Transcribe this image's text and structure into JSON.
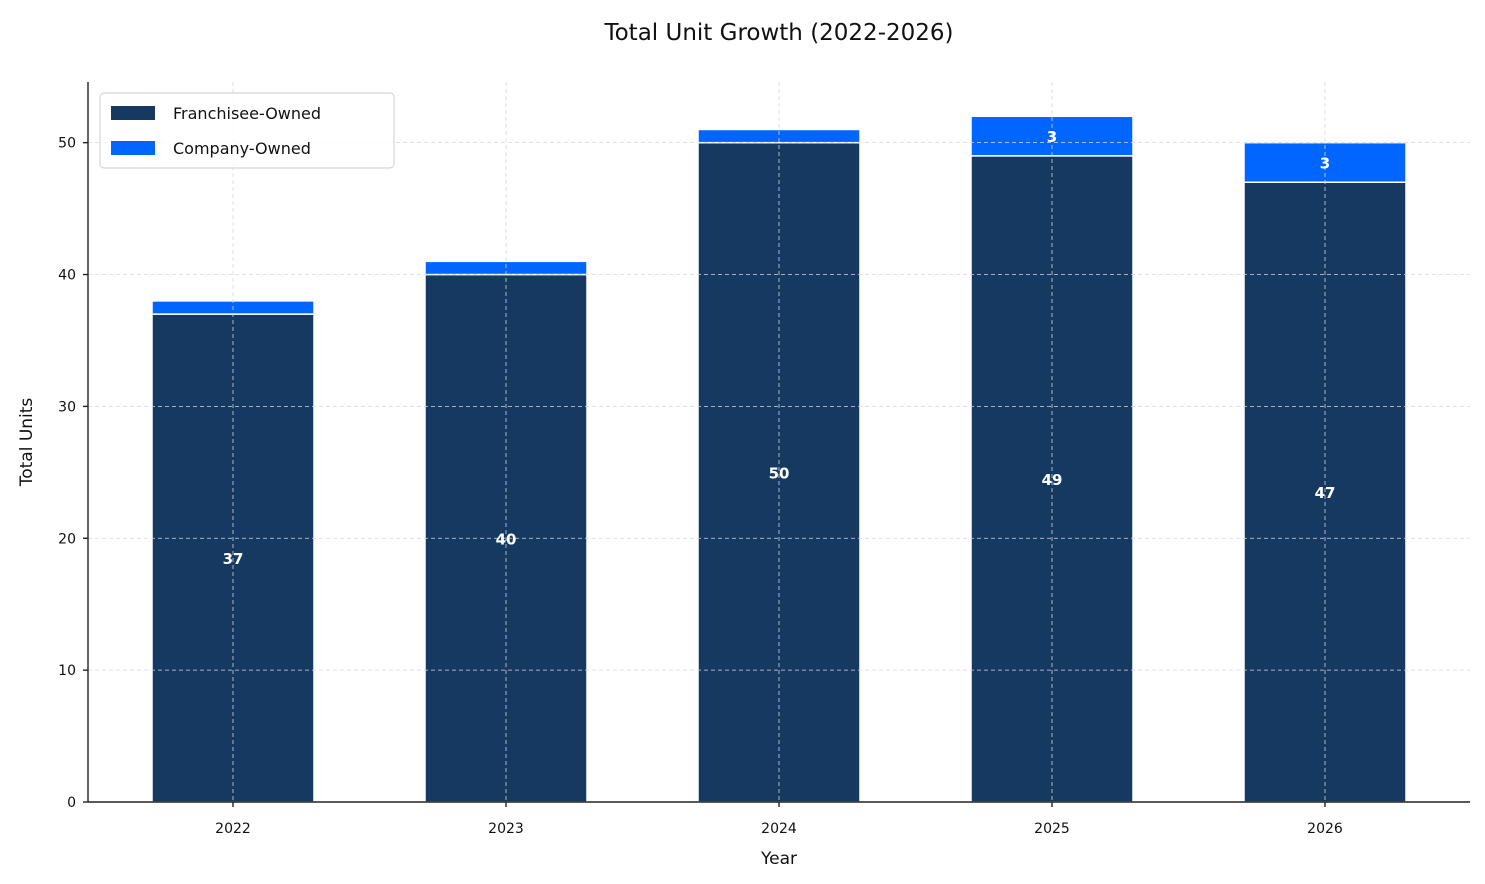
{
  "chart_data": {
    "type": "bar",
    "stacked": true,
    "title": "Total Unit Growth (2022-2026)",
    "xlabel": "Year",
    "ylabel": "Total Units",
    "categories": [
      "2022",
      "2023",
      "2024",
      "2025",
      "2026"
    ],
    "series": [
      {
        "name": "Franchisee-Owned",
        "color": "#153961",
        "values": [
          37,
          40,
          50,
          49,
          47
        ],
        "data_labels": [
          "37",
          "40",
          "50",
          "49",
          "47"
        ]
      },
      {
        "name": "Company-Owned",
        "color": "#0066ff",
        "values": [
          1,
          1,
          1,
          3,
          3
        ],
        "data_labels": [
          "",
          "",
          "",
          "3",
          "3"
        ]
      }
    ],
    "ylim": [
      0,
      54.6
    ],
    "yticks": [
      0,
      10,
      20,
      30,
      40,
      50
    ],
    "ytick_labels": [
      "0",
      "10",
      "20",
      "30",
      "40",
      "50"
    ],
    "grid": true,
    "legend_position": "top-left"
  }
}
